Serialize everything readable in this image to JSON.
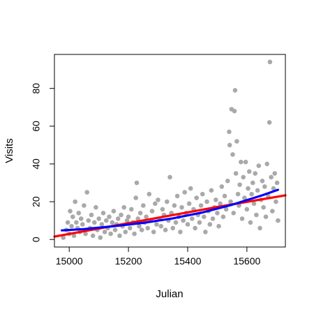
{
  "chart_data": {
    "type": "scatter",
    "title": "",
    "xlabel": "Julian",
    "ylabel": "Visits",
    "xlim": [
      14950,
      15730
    ],
    "ylim": [
      -4,
      98
    ],
    "x_ticks": [
      15000,
      15200,
      15400,
      15600
    ],
    "x_tick_labels": [
      "15000",
      "15200",
      "15400",
      "15600"
    ],
    "y_ticks": [
      0,
      20,
      40,
      60,
      80
    ],
    "y_tick_labels": [
      "0",
      "20",
      "40",
      "60",
      "80"
    ],
    "grid": false,
    "legend": "none",
    "x_range_observed": [
      14975,
      15705
    ],
    "point_color": "#a9a9a9",
    "scatter_points": [
      [
        14980,
        1
      ],
      [
        14990,
        5
      ],
      [
        14995,
        9
      ],
      [
        15000,
        3
      ],
      [
        15003,
        15
      ],
      [
        15008,
        7
      ],
      [
        15012,
        12
      ],
      [
        15016,
        2
      ],
      [
        15020,
        20
      ],
      [
        15024,
        9
      ],
      [
        15028,
        6
      ],
      [
        15032,
        14
      ],
      [
        15036,
        4
      ],
      [
        15040,
        11
      ],
      [
        15045,
        8
      ],
      [
        15050,
        18
      ],
      [
        15055,
        3
      ],
      [
        15060,
        25
      ],
      [
        15065,
        10
      ],
      [
        15070,
        6
      ],
      [
        15075,
        13
      ],
      [
        15080,
        2
      ],
      [
        15085,
        9
      ],
      [
        15090,
        17
      ],
      [
        15095,
        5
      ],
      [
        15100,
        11
      ],
      [
        15105,
        1
      ],
      [
        15110,
        8
      ],
      [
        15115,
        14
      ],
      [
        15120,
        4
      ],
      [
        15125,
        10
      ],
      [
        15130,
        6
      ],
      [
        15135,
        12
      ],
      [
        15140,
        3
      ],
      [
        15145,
        9
      ],
      [
        15150,
        15
      ],
      [
        15155,
        5
      ],
      [
        15160,
        8
      ],
      [
        15165,
        11
      ],
      [
        15170,
        2
      ],
      [
        15175,
        13
      ],
      [
        15180,
        7
      ],
      [
        15185,
        17
      ],
      [
        15190,
        4
      ],
      [
        15195,
        10
      ],
      [
        15200,
        12
      ],
      [
        15205,
        6
      ],
      [
        15210,
        16
      ],
      [
        15215,
        9
      ],
      [
        15220,
        3
      ],
      [
        15225,
        22
      ],
      [
        15228,
        30
      ],
      [
        15232,
        11
      ],
      [
        15236,
        7
      ],
      [
        15240,
        14
      ],
      [
        15245,
        5
      ],
      [
        15250,
        18
      ],
      [
        15255,
        9
      ],
      [
        15260,
        12
      ],
      [
        15265,
        6
      ],
      [
        15270,
        24
      ],
      [
        15275,
        10
      ],
      [
        15280,
        15
      ],
      [
        15285,
        4
      ],
      [
        15290,
        19
      ],
      [
        15295,
        8
      ],
      [
        15300,
        21
      ],
      [
        15305,
        11
      ],
      [
        15310,
        7
      ],
      [
        15315,
        16
      ],
      [
        15320,
        13
      ],
      [
        15325,
        5
      ],
      [
        15330,
        20
      ],
      [
        15335,
        10
      ],
      [
        15340,
        33
      ],
      [
        15345,
        14
      ],
      [
        15350,
        6
      ],
      [
        15355,
        18
      ],
      [
        15360,
        9
      ],
      [
        15365,
        23
      ],
      [
        15370,
        12
      ],
      [
        15375,
        4
      ],
      [
        15380,
        17
      ],
      [
        15385,
        10
      ],
      [
        15390,
        25
      ],
      [
        15395,
        14
      ],
      [
        15400,
        8
      ],
      [
        15405,
        19
      ],
      [
        15410,
        27
      ],
      [
        15415,
        11
      ],
      [
        15420,
        16
      ],
      [
        15425,
        6
      ],
      [
        15430,
        22
      ],
      [
        15435,
        13
      ],
      [
        15440,
        9
      ],
      [
        15445,
        18
      ],
      [
        15450,
        24
      ],
      [
        15455,
        12
      ],
      [
        15460,
        4
      ],
      [
        15465,
        20
      ],
      [
        15470,
        15
      ],
      [
        15475,
        8
      ],
      [
        15480,
        26
      ],
      [
        15485,
        11
      ],
      [
        15490,
        17
      ],
      [
        15495,
        21
      ],
      [
        15500,
        14
      ],
      [
        15505,
        7
      ],
      [
        15510,
        19
      ],
      [
        15515,
        28
      ],
      [
        15520,
        12
      ],
      [
        15525,
        23
      ],
      [
        15530,
        16
      ],
      [
        15535,
        31
      ],
      [
        15540,
        57
      ],
      [
        15542,
        50
      ],
      [
        15545,
        20
      ],
      [
        15548,
        69
      ],
      [
        15552,
        45
      ],
      [
        15555,
        14
      ],
      [
        15558,
        68
      ],
      [
        15560,
        79
      ],
      [
        15563,
        35
      ],
      [
        15566,
        52
      ],
      [
        15570,
        24
      ],
      [
        15573,
        18
      ],
      [
        15576,
        29
      ],
      [
        15580,
        41
      ],
      [
        15584,
        11
      ],
      [
        15588,
        33
      ],
      [
        15592,
        22
      ],
      [
        15596,
        41
      ],
      [
        15600,
        16
      ],
      [
        15604,
        27
      ],
      [
        15608,
        36
      ],
      [
        15612,
        9
      ],
      [
        15616,
        24
      ],
      [
        15620,
        30
      ],
      [
        15624,
        19
      ],
      [
        15628,
        35
      ],
      [
        15632,
        13
      ],
      [
        15636,
        26
      ],
      [
        15640,
        39
      ],
      [
        15644,
        6
      ],
      [
        15648,
        21
      ],
      [
        15652,
        31
      ],
      [
        15656,
        17
      ],
      [
        15660,
        28
      ],
      [
        15664,
        12
      ],
      [
        15668,
        40
      ],
      [
        15672,
        23
      ],
      [
        15676,
        62
      ],
      [
        15678,
        94
      ],
      [
        15682,
        33
      ],
      [
        15686,
        15
      ],
      [
        15690,
        27
      ],
      [
        15694,
        35
      ],
      [
        15698,
        20
      ],
      [
        15702,
        30
      ],
      [
        15705,
        10
      ]
    ],
    "series": [
      {
        "type": "line",
        "color": "#ff0000",
        "x": [
          14950,
          15100,
          15300,
          15500,
          15730
        ],
        "y": [
          1.5,
          5.8,
          11.5,
          17.2,
          23.4
        ]
      },
      {
        "type": "line",
        "color": "#0000ff",
        "x": [
          14975,
          15050,
          15150,
          15250,
          15350,
          15450,
          15550,
          15650,
          15705
        ],
        "y": [
          4.8,
          5.5,
          7,
          8.8,
          11.2,
          14.3,
          18.4,
          23.3,
          26.3
        ]
      }
    ]
  }
}
